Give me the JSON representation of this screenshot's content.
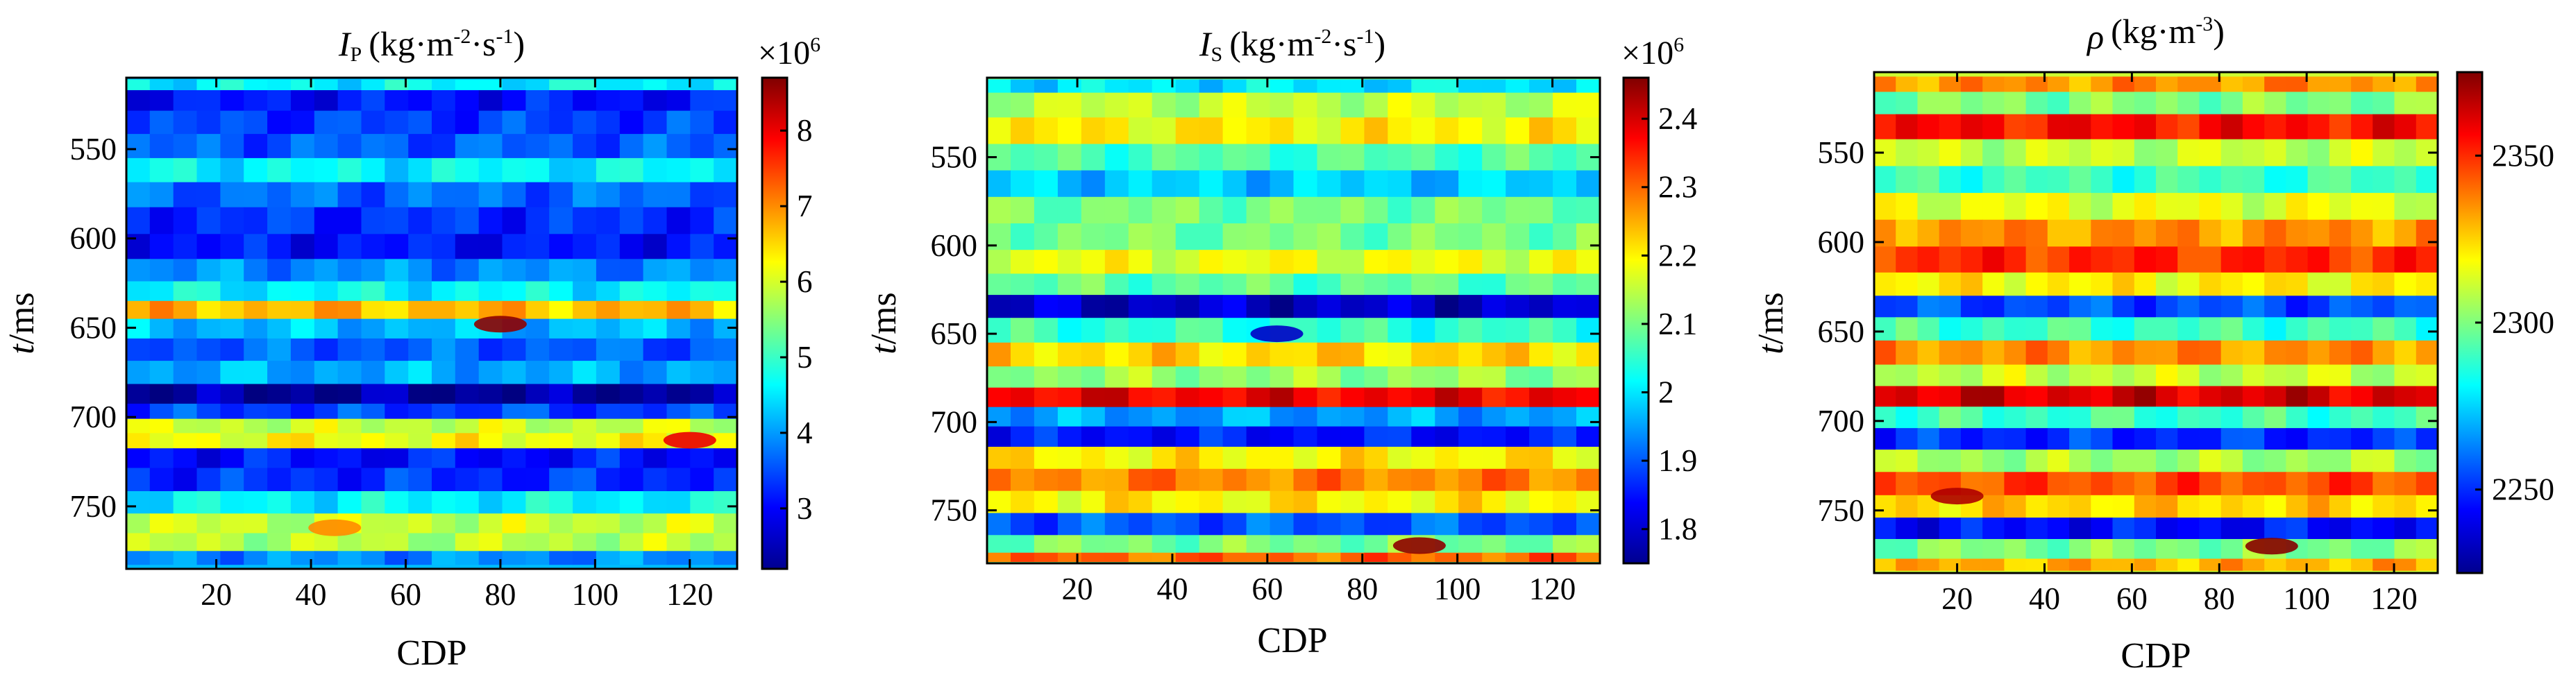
{
  "figure": {
    "panels": [
      {
        "id": "ip",
        "title_symbol": "I",
        "title_sub": "P",
        "title_units": "(kg·m",
        "title_exp1": "-2",
        "title_mid": "·s",
        "title_exp2": "-1",
        "title_close": ")",
        "ylabel_italic": "t",
        "ylabel_rest": "/ms",
        "xlabel": "CDP",
        "colorbar_multiplier_base": "×10",
        "colorbar_multiplier_exp": "6"
      },
      {
        "id": "is",
        "title_symbol": "I",
        "title_sub": "S",
        "title_units": "(kg·m",
        "title_exp1": "-2",
        "title_mid": "·s",
        "title_exp2": "-1",
        "title_close": ")",
        "ylabel_italic": "t",
        "ylabel_rest": "/ms",
        "xlabel": "CDP",
        "colorbar_multiplier_base": "×10",
        "colorbar_multiplier_exp": "6"
      },
      {
        "id": "rho",
        "title_symbol": "ρ",
        "title_sub": "",
        "title_units": "(kg·m",
        "title_exp1": "-3",
        "title_mid": "",
        "title_exp2": "",
        "title_close": ")",
        "ylabel_italic": "t",
        "ylabel_rest": "/ms",
        "xlabel": "CDP",
        "colorbar_multiplier_base": "",
        "colorbar_multiplier_exp": ""
      }
    ]
  },
  "chart_data": [
    {
      "type": "heatmap",
      "title": "IP (kg·m-2·s-1)",
      "xlabel": "CDP",
      "ylabel": "t/ms",
      "xlim": [
        1,
        130
      ],
      "ylim": [
        785,
        510
      ],
      "xticks": [
        20,
        40,
        60,
        80,
        100,
        120
      ],
      "yticks": [
        550,
        600,
        650,
        700,
        750
      ],
      "colormap": "jet",
      "colorbar": {
        "min": 2.2,
        "max": 8.7,
        "ticks": [
          3,
          4,
          5,
          6,
          7,
          8
        ],
        "multiplier": "×10^6"
      },
      "bands": [
        {
          "t": 512,
          "value": 4.6
        },
        {
          "t": 522,
          "value": 3.1
        },
        {
          "t": 535,
          "value": 3.4
        },
        {
          "t": 548,
          "value": 3.6
        },
        {
          "t": 562,
          "value": 4.6
        },
        {
          "t": 575,
          "value": 3.7
        },
        {
          "t": 590,
          "value": 3.3
        },
        {
          "t": 605,
          "value": 3.1
        },
        {
          "t": 618,
          "value": 3.9
        },
        {
          "t": 630,
          "value": 4.6
        },
        {
          "t": 640,
          "value": 6.7
        },
        {
          "t": 650,
          "value": 4.2
        },
        {
          "t": 662,
          "value": 3.6
        },
        {
          "t": 675,
          "value": 4.1
        },
        {
          "t": 688,
          "value": 2.4
        },
        {
          "t": 697,
          "value": 3.4
        },
        {
          "t": 705,
          "value": 5.9
        },
        {
          "t": 713,
          "value": 6.2
        },
        {
          "t": 722,
          "value": 3.1
        },
        {
          "t": 735,
          "value": 3.3
        },
        {
          "t": 748,
          "value": 4.6
        },
        {
          "t": 760,
          "value": 5.9
        },
        {
          "t": 770,
          "value": 5.8
        },
        {
          "t": 780,
          "value": 3.9
        }
      ],
      "anomalies": [
        {
          "cdp": 80,
          "t": 648,
          "value": 8.6
        },
        {
          "cdp": 45,
          "t": 762,
          "value": 7.0
        },
        {
          "cdp": 120,
          "t": 713,
          "value": 8.0
        }
      ]
    },
    {
      "type": "heatmap",
      "title": "IS (kg·m-2·s-1)",
      "xlabel": "CDP",
      "ylabel": "t/ms",
      "xlim": [
        1,
        130
      ],
      "ylim": [
        780,
        505
      ],
      "xticks": [
        20,
        40,
        60,
        80,
        100,
        120
      ],
      "yticks": [
        550,
        600,
        650,
        700,
        750
      ],
      "colormap": "jet",
      "colorbar": {
        "min": 1.75,
        "max": 2.46,
        "ticks": [
          1.8,
          1.9,
          2.0,
          2.1,
          2.2,
          2.3,
          2.4
        ],
        "multiplier": "×10^6"
      },
      "bands": [
        {
          "t": 507,
          "value": 2.0
        },
        {
          "t": 520,
          "value": 2.15
        },
        {
          "t": 535,
          "value": 2.2
        },
        {
          "t": 550,
          "value": 2.07
        },
        {
          "t": 565,
          "value": 1.98
        },
        {
          "t": 580,
          "value": 2.1
        },
        {
          "t": 595,
          "value": 2.1
        },
        {
          "t": 610,
          "value": 2.18
        },
        {
          "t": 622,
          "value": 2.08
        },
        {
          "t": 634,
          "value": 1.8
        },
        {
          "t": 648,
          "value": 2.05
        },
        {
          "t": 662,
          "value": 2.22
        },
        {
          "t": 675,
          "value": 2.12
        },
        {
          "t": 686,
          "value": 2.38
        },
        {
          "t": 697,
          "value": 1.95
        },
        {
          "t": 708,
          "value": 1.85
        },
        {
          "t": 720,
          "value": 2.2
        },
        {
          "t": 733,
          "value": 2.28
        },
        {
          "t": 745,
          "value": 2.2
        },
        {
          "t": 758,
          "value": 1.9
        },
        {
          "t": 770,
          "value": 2.1
        },
        {
          "t": 778,
          "value": 2.3
        }
      ],
      "anomalies": [
        {
          "cdp": 92,
          "t": 770,
          "value": 2.45
        },
        {
          "cdp": 62,
          "t": 650,
          "value": 1.8
        }
      ]
    },
    {
      "type": "heatmap",
      "title": "ρ (kg·m-3)",
      "xlabel": "CDP",
      "ylabel": "t/ms",
      "xlim": [
        1,
        130
      ],
      "ylim": [
        785,
        505
      ],
      "xticks": [
        20,
        40,
        60,
        80,
        100,
        120
      ],
      "yticks": [
        550,
        600,
        650,
        700,
        750
      ],
      "colormap": "jet",
      "colorbar": {
        "min": 2225,
        "max": 2375,
        "ticks": [
          2250,
          2300,
          2350
        ],
        "multiplier": ""
      },
      "bands": [
        {
          "t": 510,
          "value": 2335
        },
        {
          "t": 522,
          "value": 2300
        },
        {
          "t": 535,
          "value": 2355
        },
        {
          "t": 550,
          "value": 2310
        },
        {
          "t": 565,
          "value": 2290
        },
        {
          "t": 580,
          "value": 2315
        },
        {
          "t": 595,
          "value": 2335
        },
        {
          "t": 610,
          "value": 2350
        },
        {
          "t": 624,
          "value": 2320
        },
        {
          "t": 636,
          "value": 2255
        },
        {
          "t": 648,
          "value": 2290
        },
        {
          "t": 662,
          "value": 2335
        },
        {
          "t": 675,
          "value": 2310
        },
        {
          "t": 686,
          "value": 2362
        },
        {
          "t": 698,
          "value": 2290
        },
        {
          "t": 710,
          "value": 2250
        },
        {
          "t": 722,
          "value": 2305
        },
        {
          "t": 735,
          "value": 2345
        },
        {
          "t": 748,
          "value": 2325
        },
        {
          "t": 760,
          "value": 2245
        },
        {
          "t": 772,
          "value": 2300
        },
        {
          "t": 782,
          "value": 2330
        }
      ],
      "anomalies": [
        {
          "cdp": 92,
          "t": 770,
          "value": 2374
        },
        {
          "cdp": 20,
          "t": 742,
          "value": 2368
        }
      ]
    }
  ]
}
